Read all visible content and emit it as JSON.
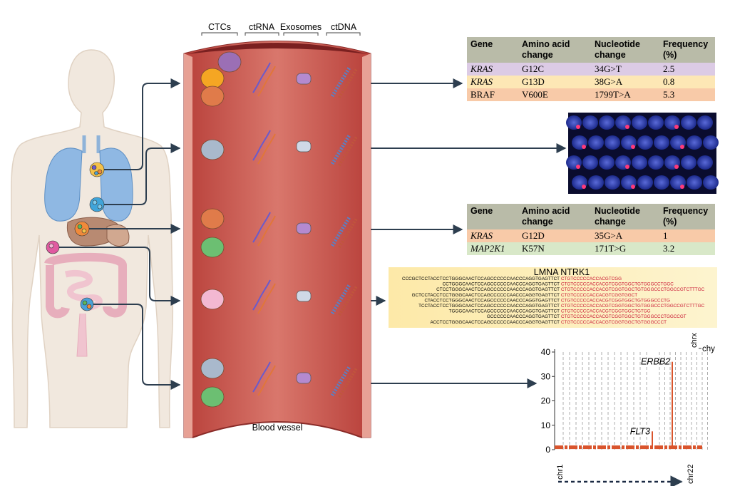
{
  "labels": {
    "ctcs": "CTCs",
    "ctrna": "ctRNA",
    "exosomes": "Exosomes",
    "ctdna": "ctDNA",
    "vessel": "Blood vessel"
  },
  "table1": {
    "header": [
      "Gene",
      "Amino acid change",
      "Nucleotide change",
      "Frequency (%)"
    ],
    "rows": [
      [
        "KRAS",
        "G12C",
        "34G>T",
        "2.5"
      ],
      [
        "KRAS",
        "G13D",
        "38G>A",
        "0.8"
      ],
      [
        "BRAF",
        "V600E",
        "1799T>A",
        "5.3"
      ]
    ]
  },
  "table2": {
    "header": [
      "Gene",
      "Amino acid change",
      "Nucleotide change",
      "Frequency (%)"
    ],
    "rows": [
      [
        "KRAS",
        "G12D",
        "35G>A",
        "1"
      ],
      [
        "MAP2K1",
        "K57N",
        "171T>G",
        "3.2"
      ]
    ]
  },
  "sequence_panel": {
    "title": "LMNA NTRK1",
    "lines": [
      {
        "left": "CCCGCTCCTACCTCCTGGGCAACTCCAGCCCCCCAACCCAGGTGAGTTCT",
        "right": "CTGTCCCCCACCACGTCGG"
      },
      {
        "left": "CCTGGGCAACTCCAGCCCCCCAACCCAGGTGAGTTCT",
        "right": "CTGTCCCCCACCACGTCGGTGGCTGTGGGCCTGGC"
      },
      {
        "left": "CTCCTGGGCAACTCCAGCCCCCCAACCCAGGTGAGTTCT",
        "right": "CTGTCCCCCACCACGTCGGTGGCTGTGGGCCCTGGCCGTCTTTGC"
      },
      {
        "left": "GCTCCTACCTCCTGGGCAACTCCAGCCCCCCAACCCAGGTGAGTTCT",
        "right": "CTGTCCCCCACCACGTCGGTGGCT"
      },
      {
        "left": "CTACCTCCTGGGCAACTCCAGCCCCCCAACCCAGGTGAGTTCT",
        "right": "CTGTCCCCCACCACGTCGGTGGCTGTGGGCCCTG"
      },
      {
        "left": "TCCTACCTCCTGGGCAACTCCAGCCCCCCAACCCAGGTGAGTTCT",
        "right": "CTGTCCCCCACCACGTCGGTGGCTGTGGGCCCTGGCCGTCTTTGC"
      },
      {
        "left": "TGGGCAACTCCAGCCCCCCAACCCAGGTGAGTTCT",
        "right": "CTGTCCCCCACCACGTCGGTGGCTGTGG"
      },
      {
        "left": "GCCCCCCAACCCAGGTGAGTTCT",
        "right": "CTGTCCCCCACCACGTCGGTGGCTGTGGGCCCTGGCCGT"
      },
      {
        "left": "ACCTCCTGGGCAACTCCAGCCCCCCAACCCAGGTGAGTTCT",
        "right": "CTGTCCCCCACCACGTCGGTGGCTGTGGGCCCT"
      }
    ]
  },
  "copy_number_chart": {
    "type": "bar",
    "ylim": [
      0,
      40
    ],
    "yticks": [
      0,
      10,
      20,
      30,
      40
    ],
    "baseline": 1,
    "genes": [
      {
        "name": "FLT3",
        "value": 7.5
      },
      {
        "name": "ERBB2",
        "value": 36
      }
    ],
    "x_start": "chr1",
    "x_end": "chr22",
    "chrx": "chrx",
    "chy": "chy",
    "color": "#d9542c"
  }
}
